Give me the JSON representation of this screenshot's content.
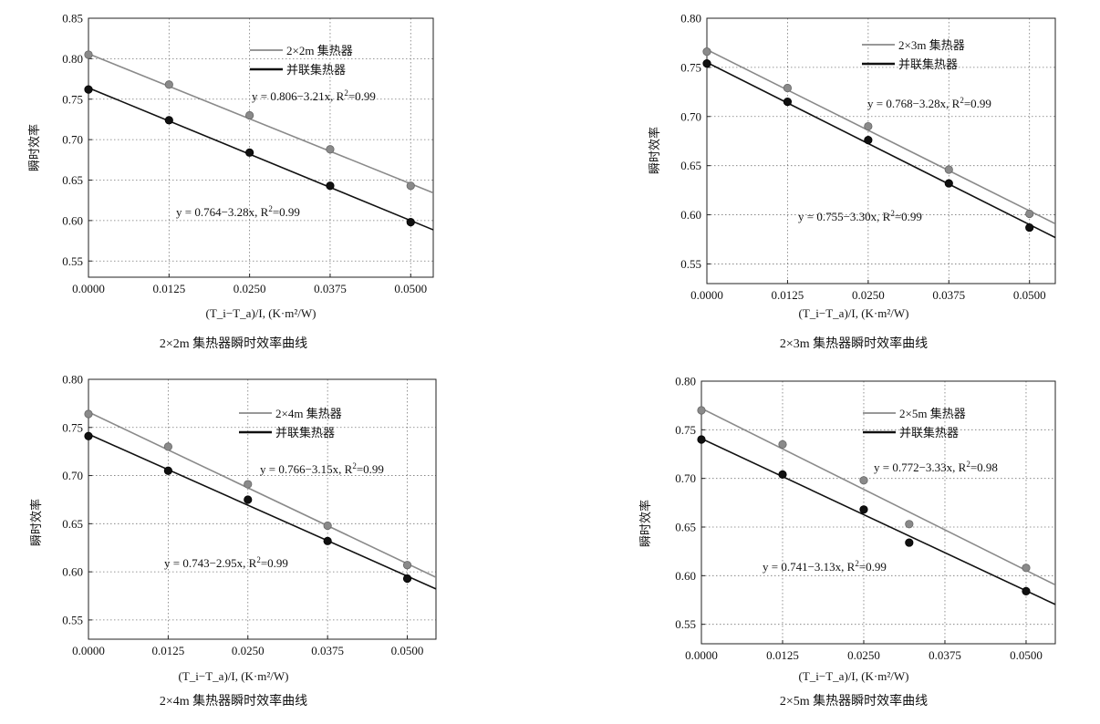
{
  "chart_data": [
    {
      "type": "scatter",
      "caption": "2×2m 集热器瞬时效率曲线",
      "xlabel": "(T_i−T_a)/I, (K·m²/W)",
      "ylabel": "瞬时效率",
      "xlim": [
        0,
        0.0535
      ],
      "ylim": [
        0.53,
        0.85
      ],
      "xticks": [
        "0.0000",
        "0.0125",
        "0.0250",
        "0.0375",
        "0.0500"
      ],
      "yticks": [
        "0.55",
        "0.60",
        "0.65",
        "0.70",
        "0.75",
        "0.80",
        "0.85"
      ],
      "grid": true,
      "legend_position": "top-right",
      "series": [
        {
          "name": "2×2m 集热器",
          "color": "#8a8a8a",
          "x": [
            0,
            0.0125,
            0.025,
            0.0375,
            0.05
          ],
          "y": [
            0.805,
            0.768,
            0.73,
            0.688,
            0.643
          ],
          "fit": {
            "a": 0.806,
            "b": -3.21
          },
          "equation": "y = 0.806−3.21x, R",
          "r2": "=0.99"
        },
        {
          "name": "并联集热器",
          "color": "#111111",
          "x": [
            0,
            0.0125,
            0.025,
            0.0375,
            0.05
          ],
          "y": [
            0.762,
            0.724,
            0.684,
            0.643,
            0.598
          ],
          "fit": {
            "a": 0.764,
            "b": -3.28
          },
          "equation": "y = 0.764−3.28x, R",
          "r2": "=0.99"
        }
      ]
    },
    {
      "type": "scatter",
      "caption": "2×3m 集热器瞬时效率曲线",
      "xlabel": "(T_i−T_a)/I, (K·m²/W)",
      "ylabel": "瞬时效率",
      "xlim": [
        0,
        0.054
      ],
      "ylim": [
        0.53,
        0.8
      ],
      "xticks": [
        "0.0000",
        "0.0125",
        "0.0250",
        "0.0375",
        "0.0500"
      ],
      "yticks": [
        "0.55",
        "0.60",
        "0.65",
        "0.70",
        "0.75",
        "0.80"
      ],
      "grid": true,
      "legend_position": "top-right",
      "series": [
        {
          "name": "2×3m 集热器",
          "color": "#8a8a8a",
          "x": [
            0,
            0.0125,
            0.025,
            0.0375,
            0.05
          ],
          "y": [
            0.766,
            0.729,
            0.69,
            0.646,
            0.601
          ],
          "fit": {
            "a": 0.768,
            "b": -3.28
          },
          "equation": "y = 0.768−3.28x, R",
          "r2": "=0.99"
        },
        {
          "name": "并联集热器",
          "color": "#111111",
          "x": [
            0,
            0.0125,
            0.025,
            0.0375,
            0.05
          ],
          "y": [
            0.754,
            0.715,
            0.676,
            0.632,
            0.587
          ],
          "fit": {
            "a": 0.755,
            "b": -3.3
          },
          "equation": "y = 0.755−3.30x, R",
          "r2": "=0.99"
        }
      ]
    },
    {
      "type": "scatter",
      "caption": "2×4m 集热器瞬时效率曲线",
      "xlabel": "(T_i−T_a)/I, (K·m²/W)",
      "ylabel": "瞬时效率",
      "xlim": [
        0,
        0.0545
      ],
      "ylim": [
        0.53,
        0.8
      ],
      "xticks": [
        "0.0000",
        "0.0125",
        "0.0250",
        "0.0375",
        "0.0500"
      ],
      "yticks": [
        "0.55",
        "0.60",
        "0.65",
        "0.70",
        "0.75",
        "0.80"
      ],
      "grid": true,
      "legend_position": "top-right",
      "series": [
        {
          "name": "2×4m 集热器",
          "color": "#8a8a8a",
          "x": [
            0,
            0.0125,
            0.025,
            0.0375,
            0.05
          ],
          "y": [
            0.764,
            0.73,
            0.691,
            0.648,
            0.607
          ],
          "fit": {
            "a": 0.766,
            "b": -3.15
          },
          "equation": "y = 0.766−3.15x, R",
          "r2": "=0.99"
        },
        {
          "name": "并联集热器",
          "color": "#111111",
          "x": [
            0,
            0.0125,
            0.025,
            0.0375,
            0.05
          ],
          "y": [
            0.741,
            0.705,
            0.675,
            0.632,
            0.593
          ],
          "fit": {
            "a": 0.743,
            "b": -2.95
          },
          "equation": "y = 0.743−2.95x, R",
          "r2": "=0.99"
        }
      ]
    },
    {
      "type": "scatter",
      "caption": "2×5m 集热器瞬时效率曲线",
      "xlabel": "(T_i−T_a)/I, (K·m²/W)",
      "ylabel": "瞬时效率",
      "xlim": [
        0,
        0.0545
      ],
      "ylim": [
        0.53,
        0.8
      ],
      "xticks": [
        "0.0000",
        "0.0125",
        "0.0250",
        "0.0375",
        "0.0500"
      ],
      "yticks": [
        "0.55",
        "0.60",
        "0.65",
        "0.70",
        "0.75",
        "0.80"
      ],
      "grid": true,
      "legend_position": "top-right",
      "series": [
        {
          "name": "2×5m 集热器",
          "color": "#8a8a8a",
          "x": [
            0,
            0.0125,
            0.025,
            0.032,
            0.05
          ],
          "y": [
            0.77,
            0.735,
            0.698,
            0.653,
            0.608
          ],
          "fit": {
            "a": 0.772,
            "b": -3.33
          },
          "equation": "y = 0.772−3.33x, R",
          "r2": "=0.98"
        },
        {
          "name": "并联集热器",
          "color": "#111111",
          "x": [
            0,
            0.0125,
            0.025,
            0.032,
            0.05
          ],
          "y": [
            0.74,
            0.704,
            0.668,
            0.634,
            0.584
          ],
          "fit": {
            "a": 0.741,
            "b": -3.13
          },
          "equation": "y = 0.741−3.13x, R",
          "r2": "=0.99"
        }
      ]
    }
  ]
}
